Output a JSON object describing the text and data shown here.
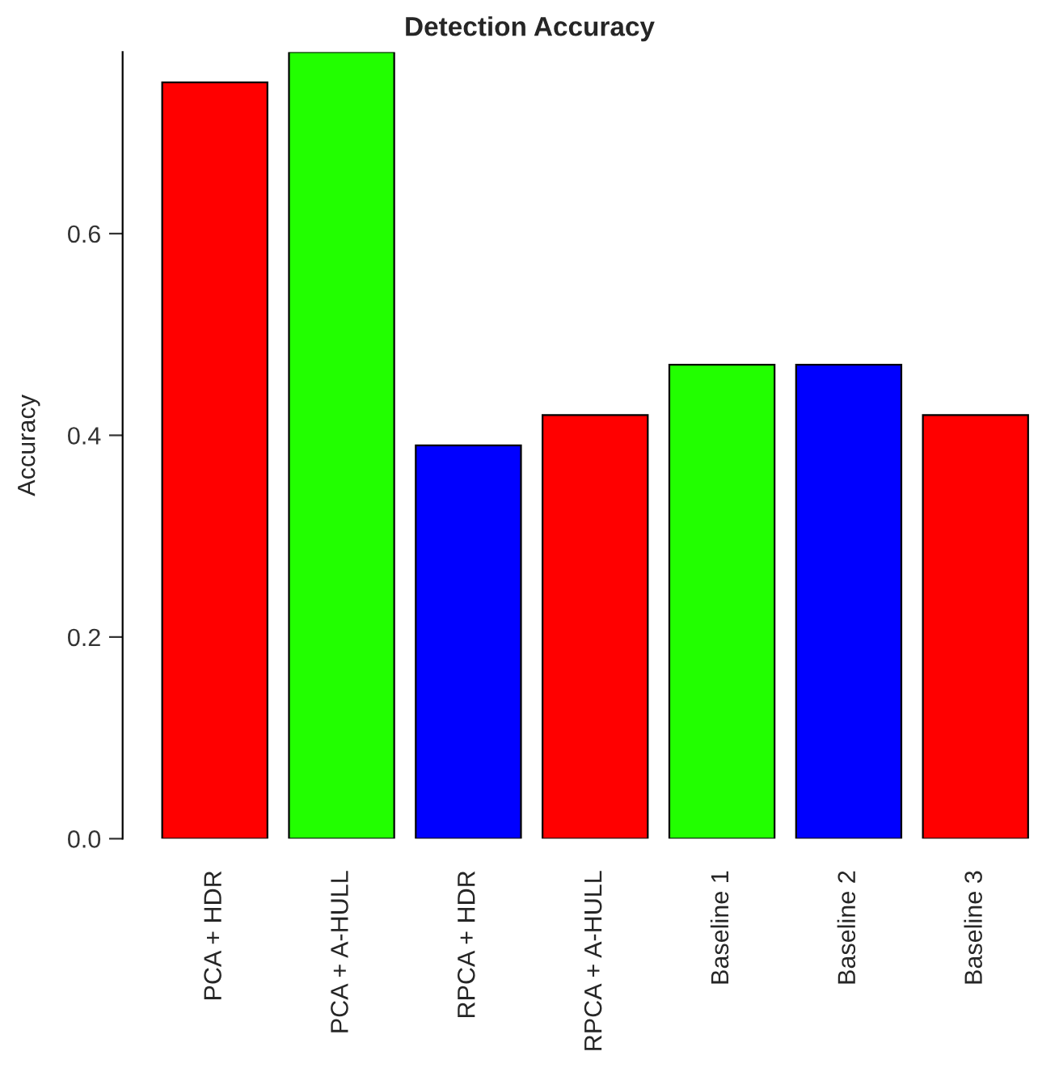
{
  "chart_data": {
    "type": "bar",
    "title": "Detection Accuracy",
    "ylabel": "Accuracy",
    "categories": [
      "PCA + HDR",
      "PCA + A-HULL",
      "RPCA + HDR",
      "RPCA + A-HULL",
      "Baseline 1",
      "Baseline 2",
      "Baseline 3"
    ],
    "values": [
      0.75,
      0.78,
      0.39,
      0.42,
      0.47,
      0.47,
      0.42
    ],
    "colors": [
      "#ff0000",
      "#22ff00",
      "#0000ff",
      "#ff0000",
      "#22ff00",
      "#0000ff",
      "#ff0000"
    ],
    "ylim": [
      0,
      0.78
    ],
    "yticks": [
      {
        "value": 0,
        "label": "0.0"
      },
      {
        "value": 0.2,
        "label": "0.2"
      },
      {
        "value": 0.4,
        "label": "0.4"
      },
      {
        "value": 0.6,
        "label": "0.6"
      }
    ],
    "grid": false,
    "legend": false
  }
}
